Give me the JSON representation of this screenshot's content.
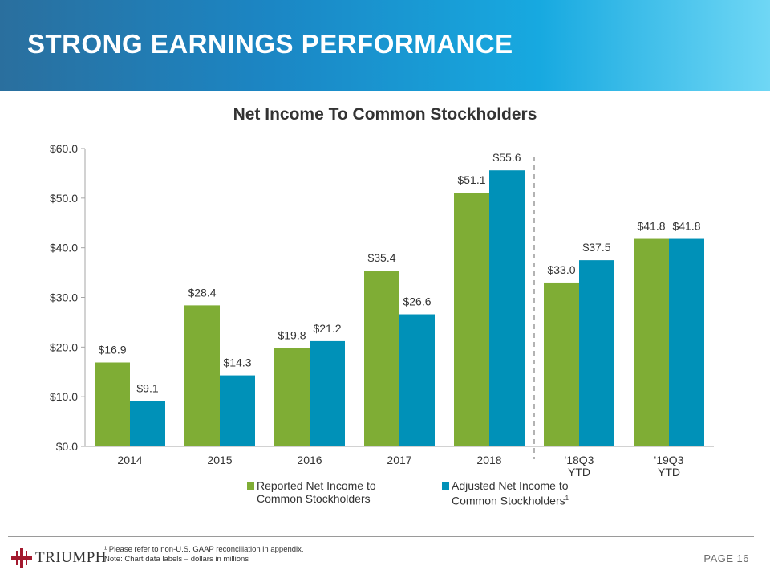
{
  "header": {
    "title": "STRONG EARNINGS PERFORMANCE"
  },
  "colors": {
    "reported": "#7fad35",
    "adjusted": "#0091b8",
    "axis": "#a6a6a6",
    "divider": "#9a9a9a",
    "logo_red": "#a3192e"
  },
  "chart_data": {
    "type": "bar",
    "title": "Net Income To Common Stockholders",
    "categories": [
      "2014",
      "2015",
      "2016",
      "2017",
      "2018",
      "'18Q3\nYTD",
      "'19Q3\nYTD"
    ],
    "series": [
      {
        "name": "Reported Net Income to Common Stockholders",
        "legend_lines": [
          "Reported Net Income to",
          "Common Stockholders"
        ],
        "superscript": "",
        "values": [
          16.9,
          28.4,
          19.8,
          35.4,
          51.1,
          33.0,
          41.8
        ],
        "labels": [
          "$16.9",
          "$28.4",
          "$19.8",
          "$35.4",
          "$51.1",
          "$33.0",
          "$41.8"
        ]
      },
      {
        "name": "Adjusted Net Income to Common Stockholders",
        "legend_lines": [
          "Adjusted Net Income to",
          "Common Stockholders"
        ],
        "superscript": "1",
        "values": [
          9.1,
          14.3,
          21.2,
          26.6,
          55.6,
          37.5,
          41.8
        ],
        "labels": [
          "$9.1",
          "$14.3",
          "$21.2",
          "$26.6",
          "$55.6",
          "$37.5",
          "$41.8"
        ]
      }
    ],
    "ylim": [
      0,
      60
    ],
    "yticks": [
      0,
      10,
      20,
      30,
      40,
      50,
      60
    ],
    "ytick_labels": [
      "$0.0",
      "$10.0",
      "$20.0",
      "$30.0",
      "$40.0",
      "$50.0",
      "$60.0"
    ],
    "xlabel": "",
    "ylabel": "",
    "divider_after_category": 4,
    "legend_position": "bottom"
  },
  "footer": {
    "footnote_1": "¹ Please refer to non-U.S. GAAP reconciliation in appendix.",
    "footnote_2": "Note: Chart data labels – dollars in millions",
    "page_label": "PAGE",
    "page_number": "16",
    "logo_text": "TRIUMPH"
  }
}
